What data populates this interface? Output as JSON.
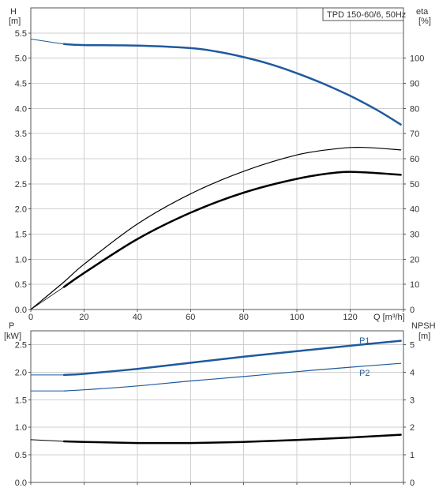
{
  "chart_data": [
    {
      "type": "line",
      "id": "top",
      "legend_text": "TPD 150-60/6, 50Hz",
      "left_axis": {
        "label_line1": "H",
        "label_line2": "[m]",
        "min": 0,
        "max": 6.0,
        "ticks": [
          "0.0",
          "0.5",
          "1.0",
          "1.5",
          "2.0",
          "2.5",
          "3.0",
          "3.5",
          "4.0",
          "4.5",
          "5.0",
          "5.5"
        ]
      },
      "right_axis": {
        "label_line1": "eta",
        "label_line2": "[%]",
        "min": 0,
        "max": 120,
        "ticks": [
          "0",
          "10",
          "20",
          "30",
          "40",
          "50",
          "60",
          "70",
          "80",
          "90",
          "100"
        ]
      },
      "x_axis": {
        "label": "Q [m³/h]",
        "min": 0,
        "max": 140,
        "ticks": [
          "0",
          "20",
          "40",
          "60",
          "80",
          "100",
          "120"
        ]
      },
      "grid": true,
      "series": [
        {
          "key": "h-curve-thin",
          "axis": "left",
          "color": "#1f5a9e",
          "width": 1,
          "x": [
            0,
            5,
            12.5
          ],
          "y": [
            5.38,
            5.34,
            5.28
          ]
        },
        {
          "key": "h-curve",
          "axis": "left",
          "color": "#1f5a9e",
          "width": 2.5,
          "x": [
            12.5,
            20,
            40,
            60,
            70,
            80,
            90,
            100,
            110,
            120,
            130,
            139
          ],
          "y": [
            5.28,
            5.26,
            5.25,
            5.2,
            5.13,
            5.02,
            4.88,
            4.7,
            4.49,
            4.25,
            3.97,
            3.68
          ]
        },
        {
          "key": "eta-curve",
          "axis": "right",
          "color": "#000000",
          "width": 1.2,
          "x": [
            0,
            12.5,
            20,
            40,
            60,
            80,
            100,
            115,
            125,
            139
          ],
          "y": [
            0,
            11,
            18,
            34,
            46,
            55,
            61.5,
            64,
            64.5,
            63.5
          ]
        },
        {
          "key": "eta-curve-thin",
          "axis": "right",
          "color": "#000000",
          "width": 0.8,
          "x": [
            0,
            12.5
          ],
          "y": [
            0,
            9
          ]
        },
        {
          "key": "eta-curve-2",
          "axis": "right",
          "color": "#000000",
          "width": 2.5,
          "x": [
            12.5,
            20,
            40,
            60,
            80,
            100,
            115,
            125,
            139
          ],
          "y": [
            9,
            14.5,
            28,
            38.5,
            46.5,
            52,
            54.5,
            54.6,
            53.6
          ]
        }
      ]
    },
    {
      "type": "line",
      "id": "bottom",
      "left_axis": {
        "label_line1": "P",
        "label_line2": "[kW]",
        "min": 0,
        "max": 2.75,
        "ticks": [
          "0.0",
          "0.5",
          "1.0",
          "1.5",
          "2.0",
          "2.5"
        ]
      },
      "right_axis": {
        "label_line1": "NPSH",
        "label_line2": "[m]",
        "min": 0,
        "max": 5.5,
        "ticks": [
          "0",
          "1",
          "2",
          "3",
          "4",
          "5"
        ]
      },
      "x_axis": {
        "min": 0,
        "max": 140
      },
      "grid": true,
      "series_labels": {
        "p1": "P1",
        "p2": "P2"
      },
      "series": [
        {
          "key": "p1-thin",
          "axis": "left",
          "color": "#1f5a9e",
          "width": 1,
          "x": [
            0,
            12.5
          ],
          "y": [
            1.95,
            1.95
          ]
        },
        {
          "key": "p1",
          "axis": "left",
          "color": "#1f5a9e",
          "width": 2.5,
          "x": [
            12.5,
            20,
            40,
            60,
            80,
            100,
            120,
            139
          ],
          "y": [
            1.95,
            1.97,
            2.06,
            2.17,
            2.28,
            2.38,
            2.48,
            2.57
          ]
        },
        {
          "key": "p2-thin",
          "axis": "left",
          "color": "#1f5a9e",
          "width": 1,
          "x": [
            0,
            12.5
          ],
          "y": [
            1.66,
            1.66
          ]
        },
        {
          "key": "p2",
          "axis": "left",
          "color": "#1f5a9e",
          "width": 1.2,
          "x": [
            12.5,
            20,
            40,
            60,
            80,
            100,
            120,
            139
          ],
          "y": [
            1.66,
            1.68,
            1.75,
            1.84,
            1.92,
            2.01,
            2.09,
            2.16
          ]
        },
        {
          "key": "npsh-thin",
          "axis": "right",
          "color": "#000000",
          "width": 1,
          "x": [
            0,
            12.5
          ],
          "y": [
            1.55,
            1.49
          ]
        },
        {
          "key": "npsh",
          "axis": "right",
          "color": "#000000",
          "width": 2.5,
          "x": [
            12.5,
            20,
            40,
            60,
            80,
            100,
            120,
            139
          ],
          "y": [
            1.49,
            1.47,
            1.43,
            1.43,
            1.47,
            1.54,
            1.63,
            1.73
          ]
        }
      ]
    }
  ]
}
